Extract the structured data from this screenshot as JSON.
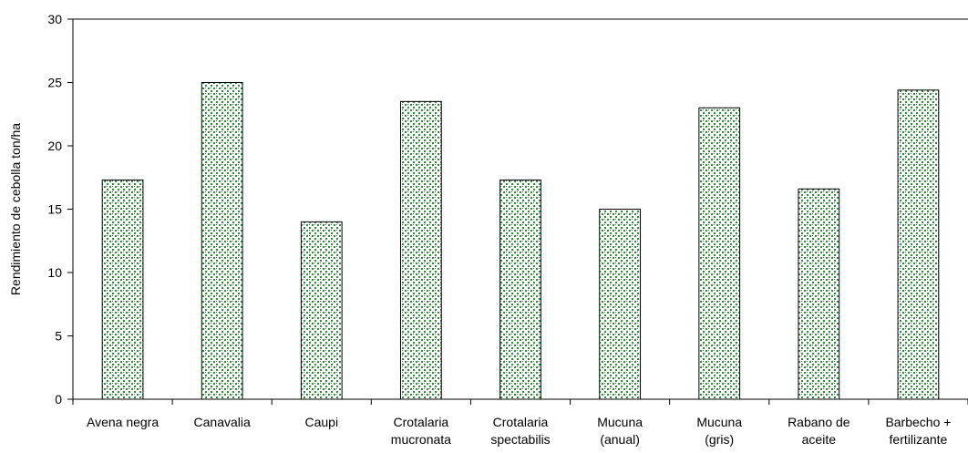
{
  "chart_data": {
    "type": "bar",
    "title": "",
    "xlabel": "",
    "ylabel": "Rendimiento de cebolla  ton/ha",
    "ylim": [
      0,
      30
    ],
    "yticks": [
      0,
      5,
      10,
      15,
      20,
      25,
      30
    ],
    "grid": false,
    "legend": "none",
    "categories": [
      [
        "Avena negra"
      ],
      [
        "Canavalia"
      ],
      [
        "Caupi"
      ],
      [
        "Crotalaria",
        "mucronata"
      ],
      [
        "Crotalaria",
        "spectabilis"
      ],
      [
        "Mucuna",
        "(anual)"
      ],
      [
        "Mucuna",
        "(gris)"
      ],
      [
        "Rabano de",
        "aceite"
      ],
      [
        "Barbecho +",
        "fertilizante"
      ]
    ],
    "values": [
      17.3,
      25.0,
      14.0,
      23.5,
      17.3,
      15.0,
      23.0,
      16.6,
      24.4
    ],
    "colors": {
      "bar_fill": "#ffffff",
      "bar_pattern": "#2e8b3c",
      "bar_stroke": "#000000",
      "axis": "#000000"
    }
  }
}
